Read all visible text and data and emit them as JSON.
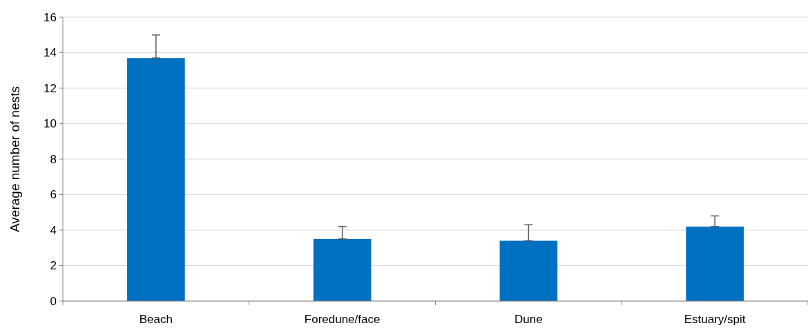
{
  "chart_data": {
    "type": "bar",
    "ylabel": "Average number of nests",
    "categories": [
      "Beach",
      "Foredune/face",
      "Dune",
      "Estuary/spit"
    ],
    "values": [
      13.7,
      3.5,
      3.4,
      4.2
    ],
    "errors": [
      [
        13.7,
        15.0
      ],
      [
        3.5,
        4.2
      ],
      [
        3.4,
        4.3
      ],
      [
        4.2,
        4.8
      ]
    ],
    "color": "#0070c0",
    "ylim": [
      0,
      16
    ],
    "yticks": [
      0,
      2,
      4,
      6,
      8,
      10,
      12,
      14,
      16
    ],
    "grid": "y"
  }
}
